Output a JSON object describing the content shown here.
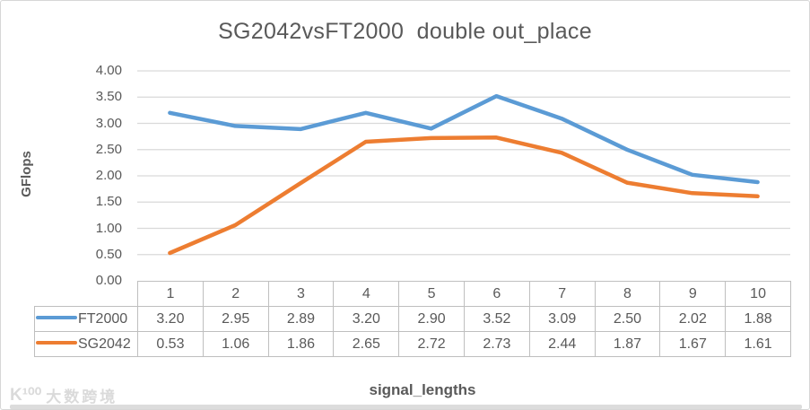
{
  "window": {
    "kind": "spreadsheet-chart"
  },
  "chart_data": {
    "type": "line",
    "title": "SG2042vsFT2000  double out_place",
    "xlabel": "signal_lengths",
    "ylabel": "GFlops",
    "categories": [
      "1",
      "2",
      "3",
      "4",
      "5",
      "6",
      "7",
      "8",
      "9",
      "10"
    ],
    "series": [
      {
        "name": "FT2000",
        "color": "#5b9bd5",
        "values": [
          3.2,
          2.95,
          2.89,
          3.2,
          2.9,
          3.52,
          3.09,
          2.5,
          2.02,
          1.88
        ]
      },
      {
        "name": "SG2042",
        "color": "#ed7d31",
        "values": [
          0.53,
          1.06,
          1.86,
          2.65,
          2.72,
          2.73,
          2.44,
          1.87,
          1.67,
          1.61
        ]
      }
    ],
    "ylim": [
      0,
      4
    ],
    "ytick_step": 0.5,
    "ytick_labels": [
      "0.00",
      "0.50",
      "1.00",
      "1.50",
      "2.00",
      "2.50",
      "3.00",
      "3.50",
      "4.00"
    ],
    "grid": true,
    "legend_position": "table-left",
    "value_decimals": 2
  },
  "watermark": {
    "logo": "K¹⁰⁰",
    "text": "大数跨境"
  },
  "colors": {
    "text": "#595959",
    "gridline": "#d9d9d9",
    "table_border": "#bfbfbf",
    "series_blue": "#5b9bd5",
    "series_orange": "#ed7d31",
    "watermark": "#dadada",
    "scrollbar": "#dcdcdc"
  }
}
